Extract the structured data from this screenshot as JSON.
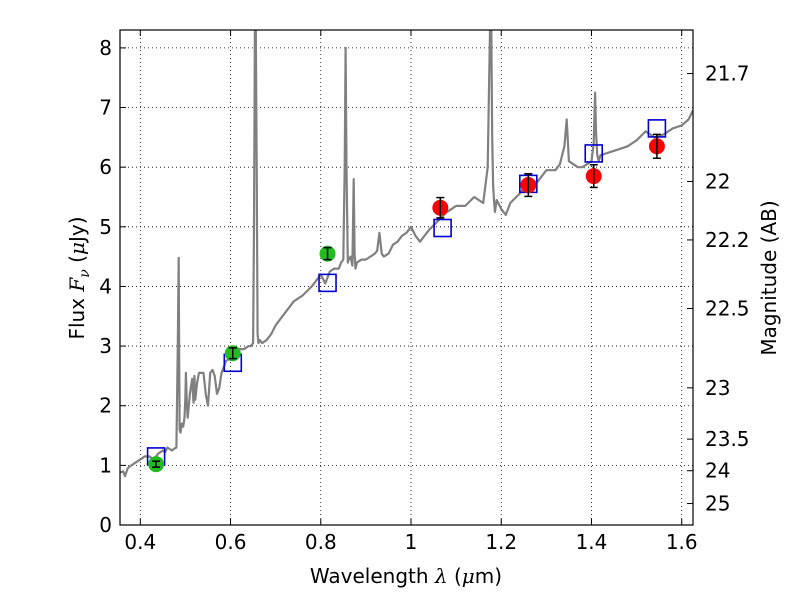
{
  "chart_data": {
    "type": "scatter",
    "title": "",
    "xlabel": "Wavelength",
    "xlabel_math": "λ",
    "xlabel_unit_open": "(",
    "xlabel_unit_math": "μ",
    "xlabel_unit_close": "m)",
    "ylabel": "Flux",
    "ylabel_math": "F",
    "ylabel_math_sub": "ν",
    "ylabel_unit_open": "(",
    "ylabel_unit_math": "μ",
    "ylabel_unit_close": "Jy)",
    "y2label": "Magnitude (AB)",
    "xlim": [
      0.355,
      1.625
    ],
    "ylim": [
      0,
      8.3
    ],
    "grid": true,
    "x_ticks": [
      0.4,
      0.6,
      0.8,
      1.0,
      1.2,
      1.4,
      1.6
    ],
    "x_tick_labels": [
      "0.4",
      "0.6",
      "0.8",
      "1",
      "1.2",
      "1.4",
      "1.6"
    ],
    "y_ticks": [
      0,
      1,
      2,
      3,
      4,
      5,
      6,
      7,
      8
    ],
    "y_tick_labels": [
      "0",
      "1",
      "2",
      "3",
      "4",
      "5",
      "6",
      "7",
      "8"
    ],
    "y2_ticks": [
      {
        "label": "21.7",
        "flux": 7.57
      },
      {
        "label": "22",
        "flux": 5.76
      },
      {
        "label": "22.2",
        "flux": 4.78
      },
      {
        "label": "22.5",
        "flux": 3.63
      },
      {
        "label": "23",
        "flux": 2.3
      },
      {
        "label": "23.5",
        "flux": 1.44
      },
      {
        "label": "24",
        "flux": 0.91
      },
      {
        "label": "25",
        "flux": 0.36
      }
    ],
    "series": [
      {
        "name": "spectrum",
        "style": "line",
        "color": "#808080",
        "x": [
          0.355,
          0.362,
          0.366,
          0.372,
          0.38,
          0.39,
          0.4,
          0.41,
          0.42,
          0.43,
          0.44,
          0.45,
          0.455,
          0.46,
          0.47,
          0.475,
          0.48,
          0.483,
          0.485,
          0.486,
          0.487,
          0.489,
          0.492,
          0.495,
          0.498,
          0.5,
          0.501,
          0.503,
          0.505,
          0.51,
          0.515,
          0.518,
          0.52,
          0.522,
          0.526,
          0.53,
          0.54,
          0.545,
          0.55,
          0.555,
          0.56,
          0.565,
          0.57,
          0.575,
          0.58,
          0.585,
          0.59,
          0.6,
          0.61,
          0.62,
          0.63,
          0.64,
          0.645,
          0.65,
          0.652,
          0.654,
          0.656,
          0.658,
          0.66,
          0.662,
          0.665,
          0.67,
          0.68,
          0.69,
          0.7,
          0.72,
          0.74,
          0.76,
          0.78,
          0.8,
          0.81,
          0.82,
          0.83,
          0.84,
          0.845,
          0.85,
          0.853,
          0.855,
          0.857,
          0.86,
          0.862,
          0.866,
          0.87,
          0.873,
          0.875,
          0.877,
          0.88,
          0.89,
          0.9,
          0.92,
          0.925,
          0.93,
          0.935,
          0.94,
          0.95,
          0.96,
          0.97,
          0.98,
          0.99,
          1.0,
          1.01,
          1.02,
          1.04,
          1.06,
          1.08,
          1.1,
          1.12,
          1.14,
          1.16,
          1.17,
          1.175,
          1.178,
          1.18,
          1.182,
          1.184,
          1.186,
          1.19,
          1.2,
          1.21,
          1.22,
          1.24,
          1.26,
          1.28,
          1.29,
          1.3,
          1.32,
          1.33,
          1.34,
          1.345,
          1.35,
          1.37,
          1.38,
          1.39,
          1.4,
          1.405,
          1.408,
          1.41,
          1.413,
          1.416,
          1.42,
          1.44,
          1.46,
          1.48,
          1.5,
          1.52,
          1.54,
          1.56,
          1.58,
          1.6,
          1.615,
          1.625
        ],
        "y": [
          0.88,
          0.9,
          0.82,
          0.95,
          1.0,
          1.05,
          1.1,
          1.15,
          1.15,
          1.1,
          1.2,
          1.25,
          1.22,
          1.3,
          1.25,
          1.28,
          1.3,
          3.0,
          4.48,
          3.0,
          1.6,
          1.55,
          1.7,
          1.65,
          1.8,
          2.15,
          2.55,
          2.05,
          1.8,
          2.2,
          2.45,
          2.05,
          2.5,
          2.1,
          2.4,
          2.55,
          2.55,
          2.2,
          2.0,
          2.55,
          2.6,
          2.5,
          2.2,
          2.3,
          2.55,
          2.65,
          2.75,
          2.8,
          2.85,
          2.95,
          2.95,
          3.0,
          3.0,
          3.05,
          5.0,
          8.3,
          8.3,
          6.0,
          3.2,
          3.05,
          3.1,
          3.05,
          3.1,
          3.2,
          3.35,
          3.55,
          3.75,
          3.85,
          4.0,
          4.2,
          4.05,
          4.25,
          4.3,
          4.3,
          4.4,
          4.45,
          6.0,
          8.0,
          6.0,
          4.4,
          4.45,
          4.5,
          4.35,
          5.8,
          4.55,
          4.3,
          4.4,
          4.45,
          4.45,
          4.55,
          4.6,
          4.9,
          4.55,
          4.5,
          4.55,
          4.7,
          4.75,
          4.85,
          4.9,
          5.0,
          4.85,
          4.75,
          4.95,
          5.1,
          5.25,
          5.35,
          5.35,
          5.5,
          5.4,
          6.0,
          8.3,
          8.3,
          6.5,
          5.7,
          5.45,
          5.25,
          5.45,
          5.3,
          5.2,
          5.4,
          5.55,
          5.75,
          5.75,
          5.85,
          5.95,
          5.95,
          6.05,
          6.35,
          6.8,
          6.1,
          6.0,
          6.0,
          6.05,
          6.1,
          6.4,
          7.25,
          6.6,
          6.2,
          6.1,
          6.2,
          6.25,
          6.3,
          6.35,
          6.45,
          6.6,
          6.5,
          6.55,
          6.65,
          6.7,
          6.8,
          6.95
        ]
      },
      {
        "name": "model-photometry",
        "style": "open-square",
        "color": "#0000cc",
        "x": [
          0.435,
          0.605,
          0.815,
          1.07,
          1.26,
          1.405,
          1.545
        ],
        "y": [
          1.15,
          2.72,
          4.06,
          4.98,
          5.72,
          6.23,
          6.65
        ]
      },
      {
        "name": "observed-optical",
        "style": "filled-circle",
        "color": "#22bb22",
        "x": [
          0.435,
          0.605,
          0.815
        ],
        "y": [
          1.02,
          2.88,
          4.55
        ],
        "yerr": [
          0.05,
          0.09,
          0.1
        ]
      },
      {
        "name": "observed-nir",
        "style": "filled-circle",
        "color": "#ff0000",
        "x": [
          1.065,
          1.26,
          1.405,
          1.545
        ],
        "y": [
          5.32,
          5.7,
          5.85,
          6.35
        ],
        "yerr": [
          0.17,
          0.19,
          0.19,
          0.2
        ]
      }
    ]
  }
}
